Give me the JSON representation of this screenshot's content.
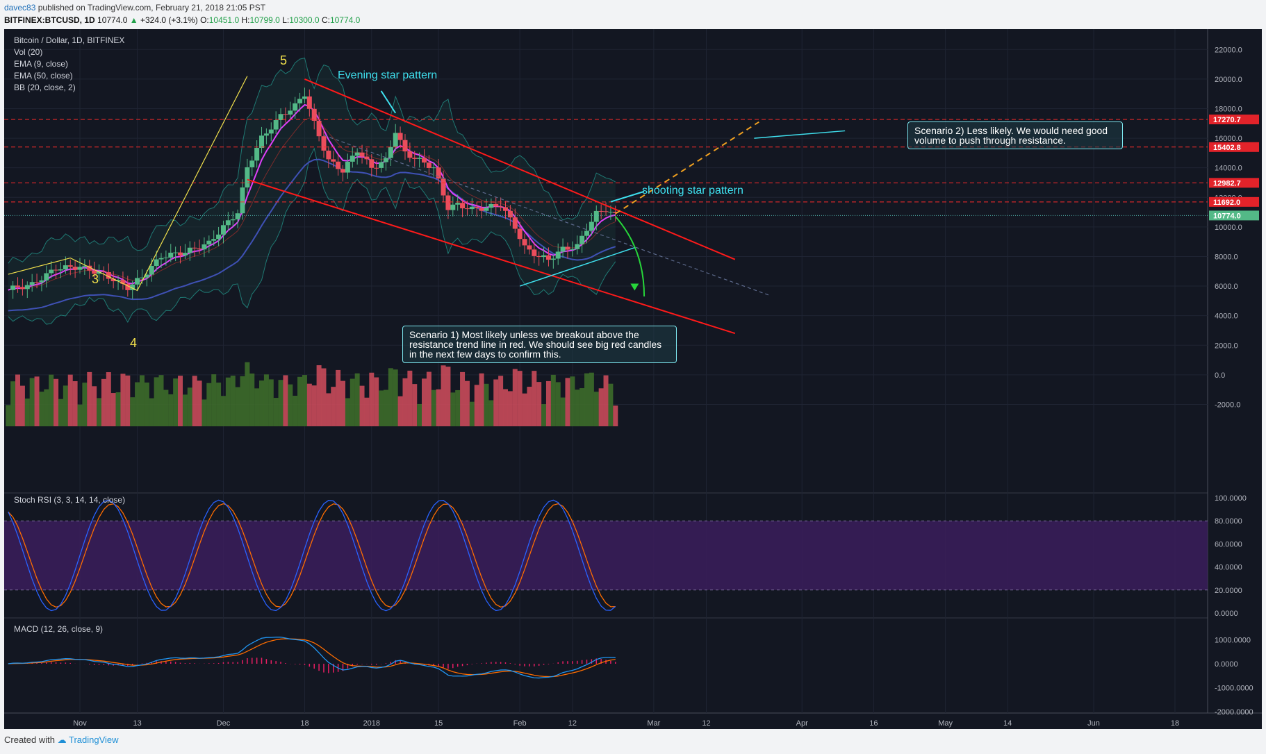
{
  "header": {
    "author": "davec83",
    "published": "published on TradingView.com, February 21, 2018 21:05 PST",
    "symbol": "BITFINEX:BTCUSD, 1D",
    "last": "10774.0",
    "change": "+324.0 (+3.1%)",
    "o_label": "O:",
    "o": "10451.0",
    "h_label": "H:",
    "h": "10799.0",
    "l_label": "L:",
    "l": "10300.0",
    "c_label": "C:",
    "c": "10774.0",
    "up_arrow": "▲"
  },
  "legend": {
    "title": "Bitcoin / Dollar, 1D, BITFINEX",
    "vol": "Vol (20)",
    "ema9": "EMA (9, close)",
    "ema50": "EMA (50, close)",
    "bb": "BB (20, close, 2)",
    "stoch": "Stoch RSI (3, 3, 14, 14, close)",
    "macd": "MACD (12, 26, close, 9)"
  },
  "annotations": {
    "evening_star": "Evening star pattern",
    "shooting_star": "shooting star pattern",
    "scenario1": "Scenario 1) Most likely unless we breakout above the resistance trend line in red. We should see big red candles in the next few days to confirm this.",
    "scenario2": "Scenario 2) Less likely. We would need good volume to push through resistance.",
    "wave3": "3",
    "wave4": "4",
    "wave5": "5"
  },
  "footer": {
    "created_with": "Created with",
    "brand": "TradingView"
  },
  "chart_data": {
    "type": "candlestick",
    "colors": {
      "background": "#131722",
      "up": "#53b987",
      "down": "#eb4d5c",
      "ema9": "#e040fb",
      "ema50": "#3f51b5",
      "trendline": "#ff1a1a",
      "resistance": "#ff2b2b",
      "stoch_k": "#2962ff",
      "stoch_d": "#ff6d00",
      "stoch_band": "#3b1d5c",
      "macd": "#2196f3",
      "signal": "#ff6d00",
      "hist": "#e91e63"
    },
    "x_ticks": [
      "Nov",
      "13",
      "Dec",
      "18",
      "2018",
      "15",
      "Feb",
      "12",
      "Mar",
      "12",
      "Apr",
      "16",
      "May",
      "14",
      "Jun",
      "18"
    ],
    "x_tick_days": [
      0,
      12,
      30,
      47,
      61,
      75,
      92,
      103,
      120,
      131,
      151,
      166,
      181,
      194,
      212,
      229
    ],
    "y_ticks": [
      22000,
      20000,
      18000,
      16000,
      14000,
      12000,
      10000,
      8000,
      6000,
      4000,
      2000,
      0,
      -2000
    ],
    "y_range": [
      -3200,
      23000
    ],
    "price_labels": [
      "17270.7",
      "15402.8",
      "12982.7",
      "11692.0",
      "10774.0"
    ],
    "price_levels": [
      17270.7,
      15402.8,
      12982.7,
      11692.0,
      10774.0
    ],
    "stoch_ticks": [
      "100.0000",
      "80.0000",
      "60.0000",
      "40.0000",
      "20.0000",
      "0.0000"
    ],
    "stoch_values": [
      100,
      80,
      60,
      40,
      20,
      0
    ],
    "macd_ticks": [
      "1000.0000",
      "0.0000",
      "-1000.0000",
      "-2000.0000"
    ],
    "macd_values": [
      1000,
      0,
      -1000,
      -2000
    ],
    "close_keypoints": [
      [
        -15,
        5800
      ],
      [
        -10,
        6100
      ],
      [
        -5,
        7200
      ],
      [
        0,
        7300
      ],
      [
        5,
        6800
      ],
      [
        10,
        5900
      ],
      [
        13,
        6600
      ],
      [
        17,
        8000
      ],
      [
        22,
        8300
      ],
      [
        27,
        8900
      ],
      [
        30,
        10000
      ],
      [
        33,
        11000
      ],
      [
        35,
        14000
      ],
      [
        38,
        16000
      ],
      [
        42,
        17500
      ],
      [
        45,
        18200
      ],
      [
        47,
        19000
      ],
      [
        49,
        17000
      ],
      [
        52,
        14500
      ],
      [
        55,
        13800
      ],
      [
        58,
        15200
      ],
      [
        61,
        14000
      ],
      [
        64,
        14500
      ],
      [
        66,
        16500
      ],
      [
        68,
        15000
      ],
      [
        71,
        14500
      ],
      [
        74,
        14000
      ],
      [
        77,
        11300
      ],
      [
        79,
        11500
      ],
      [
        82,
        11200
      ],
      [
        85,
        11300
      ],
      [
        88,
        11500
      ],
      [
        91,
        10000
      ],
      [
        93,
        8600
      ],
      [
        96,
        8000
      ],
      [
        98,
        7800
      ],
      [
        101,
        8500
      ],
      [
        104,
        8700
      ],
      [
        106,
        9900
      ],
      [
        108,
        10900
      ],
      [
        110,
        11200
      ],
      [
        112,
        10774
      ]
    ],
    "resistance_line": [
      [
        47,
        20000
      ],
      [
        137,
        7800
      ]
    ],
    "support_line": [
      [
        35,
        13200
      ],
      [
        137,
        2800
      ]
    ],
    "yellow_waves": [
      [
        -15,
        6800
      ],
      [
        -2,
        7900
      ],
      [
        12,
        5700
      ],
      [
        35,
        20200
      ]
    ],
    "volume_max_label": "2000.0"
  }
}
